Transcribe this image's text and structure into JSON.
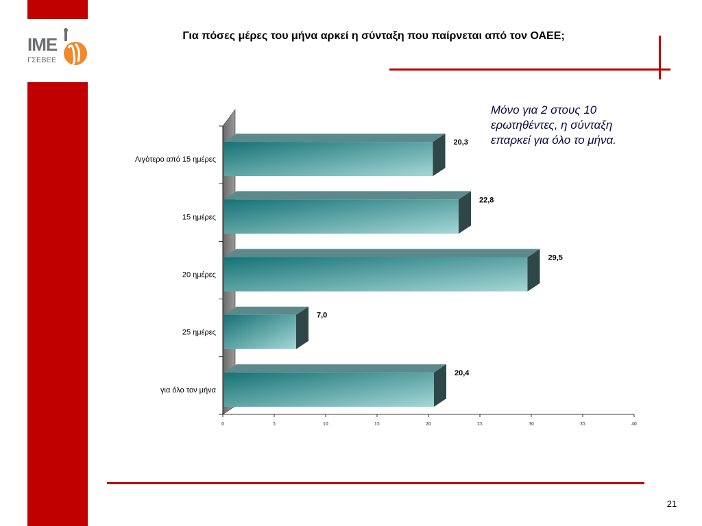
{
  "header": {
    "title": "Για πόσες μέρες του μήνα αρκεί η σύνταξη που παίρνεται από τον ΟΑΕΕ;"
  },
  "logo": {
    "main": "IME",
    "sub": "ΓΣΕΒΕΕ"
  },
  "note": {
    "text": "Μόνο για 2 στους 10 ερωτηθέντες, η σύνταξη επαρκεί για όλο το μήνα."
  },
  "footer": {
    "page_number": "21"
  },
  "colors": {
    "accent": "#c00000",
    "bar_dark": "#167275",
    "bar_light": "#9fd3d3",
    "bar_top": "#5c8a8c",
    "bar_side": "#2f4748"
  },
  "chart_data": {
    "type": "bar",
    "orientation": "horizontal",
    "three_d": true,
    "categories": [
      "Λιγότερο από 15 ημέρες",
      "15 ημέρες",
      "20 ημέρες",
      "25 ημέρες",
      "για όλο τον μήνα"
    ],
    "values": [
      20.3,
      22.8,
      29.5,
      7.0,
      20.4
    ],
    "value_labels": [
      "20,3",
      "22,8",
      "29,5",
      "7,0",
      "20,4"
    ],
    "xlim": [
      0,
      40
    ],
    "xticks": [
      0,
      5,
      10,
      15,
      20,
      25,
      30,
      35,
      40
    ],
    "grid": false
  }
}
